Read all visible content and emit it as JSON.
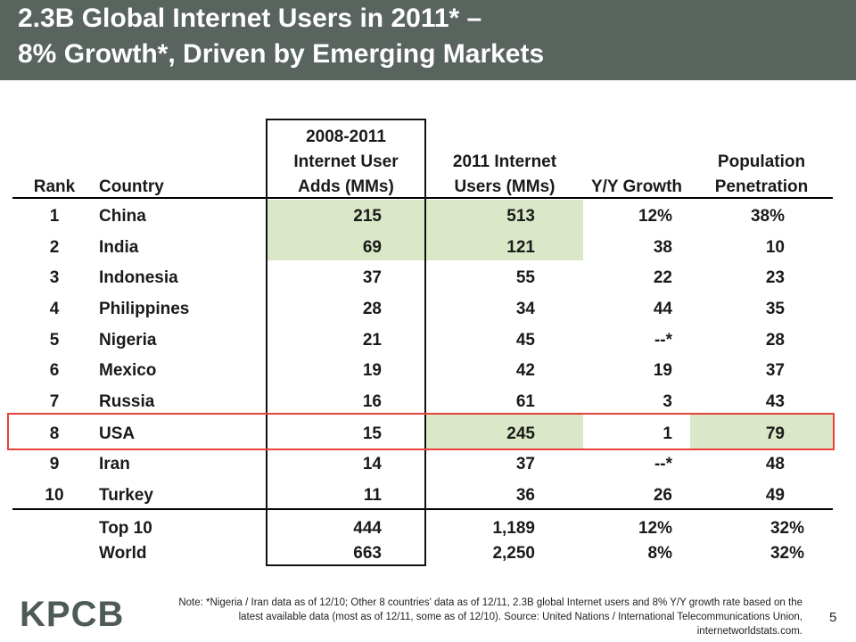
{
  "title": {
    "line1": "2.3B Global Internet Users in 2011* –",
    "line2": "8% Growth*, Driven by Emerging Markets"
  },
  "table": {
    "headers": {
      "rank": "Rank",
      "country": "Country",
      "adds": [
        "2008-2011",
        "Internet User",
        "Adds (MMs)"
      ],
      "users": [
        "2011 Internet",
        "Users (MMs)"
      ],
      "growth": "Y/Y Growth",
      "penetration": [
        "Population",
        "Penetration"
      ]
    },
    "rows": [
      {
        "rank": "1",
        "country": "China",
        "adds": "215",
        "users": "513",
        "growth": "12%",
        "pen": "38%"
      },
      {
        "rank": "2",
        "country": "India",
        "adds": "69",
        "users": "121",
        "growth": "38",
        "pen": "10"
      },
      {
        "rank": "3",
        "country": "Indonesia",
        "adds": "37",
        "users": "55",
        "growth": "22",
        "pen": "23"
      },
      {
        "rank": "4",
        "country": "Philippines",
        "adds": "28",
        "users": "34",
        "growth": "44",
        "pen": "35"
      },
      {
        "rank": "5",
        "country": "Nigeria",
        "adds": "21",
        "users": "45",
        "growth": "--*",
        "pen": "28"
      },
      {
        "rank": "6",
        "country": "Mexico",
        "adds": "19",
        "users": "42",
        "growth": "19",
        "pen": "37"
      },
      {
        "rank": "7",
        "country": "Russia",
        "adds": "16",
        "users": "61",
        "growth": "3",
        "pen": "43"
      },
      {
        "rank": "8",
        "country": "USA",
        "adds": "15",
        "users": "245",
        "growth": "1",
        "pen": "79"
      },
      {
        "rank": "9",
        "country": "Iran",
        "adds": "14",
        "users": "37",
        "growth": "--*",
        "pen": "48"
      },
      {
        "rank": "10",
        "country": "Turkey",
        "adds": "11",
        "users": "36",
        "growth": "26",
        "pen": "49"
      }
    ],
    "totals": [
      {
        "country": "Top 10",
        "adds": "444",
        "users": "1,189",
        "growth": "12%",
        "pen": "32%"
      },
      {
        "country": "World",
        "adds": "663",
        "users": "2,250",
        "growth": "8%",
        "pen": "32%"
      }
    ]
  },
  "colors": {
    "title_bar": "#59645f",
    "highlight_green": "#dbe8c7",
    "highlight_red": "#e8423b"
  },
  "footer": {
    "logo": "KPCB",
    "note_line1": "Note: *Nigeria / Iran data as of 12/10; Other 8 countries' data as of 12/11, 2.3B global Internet users and 8% Y/Y growth rate based on the",
    "note_line2": "latest available data (most as of 12/11, some as of 12/10). Source: United Nations / International Telecommunications Union,",
    "note_line3": "internetworldstats.com.",
    "page_number": "5"
  }
}
